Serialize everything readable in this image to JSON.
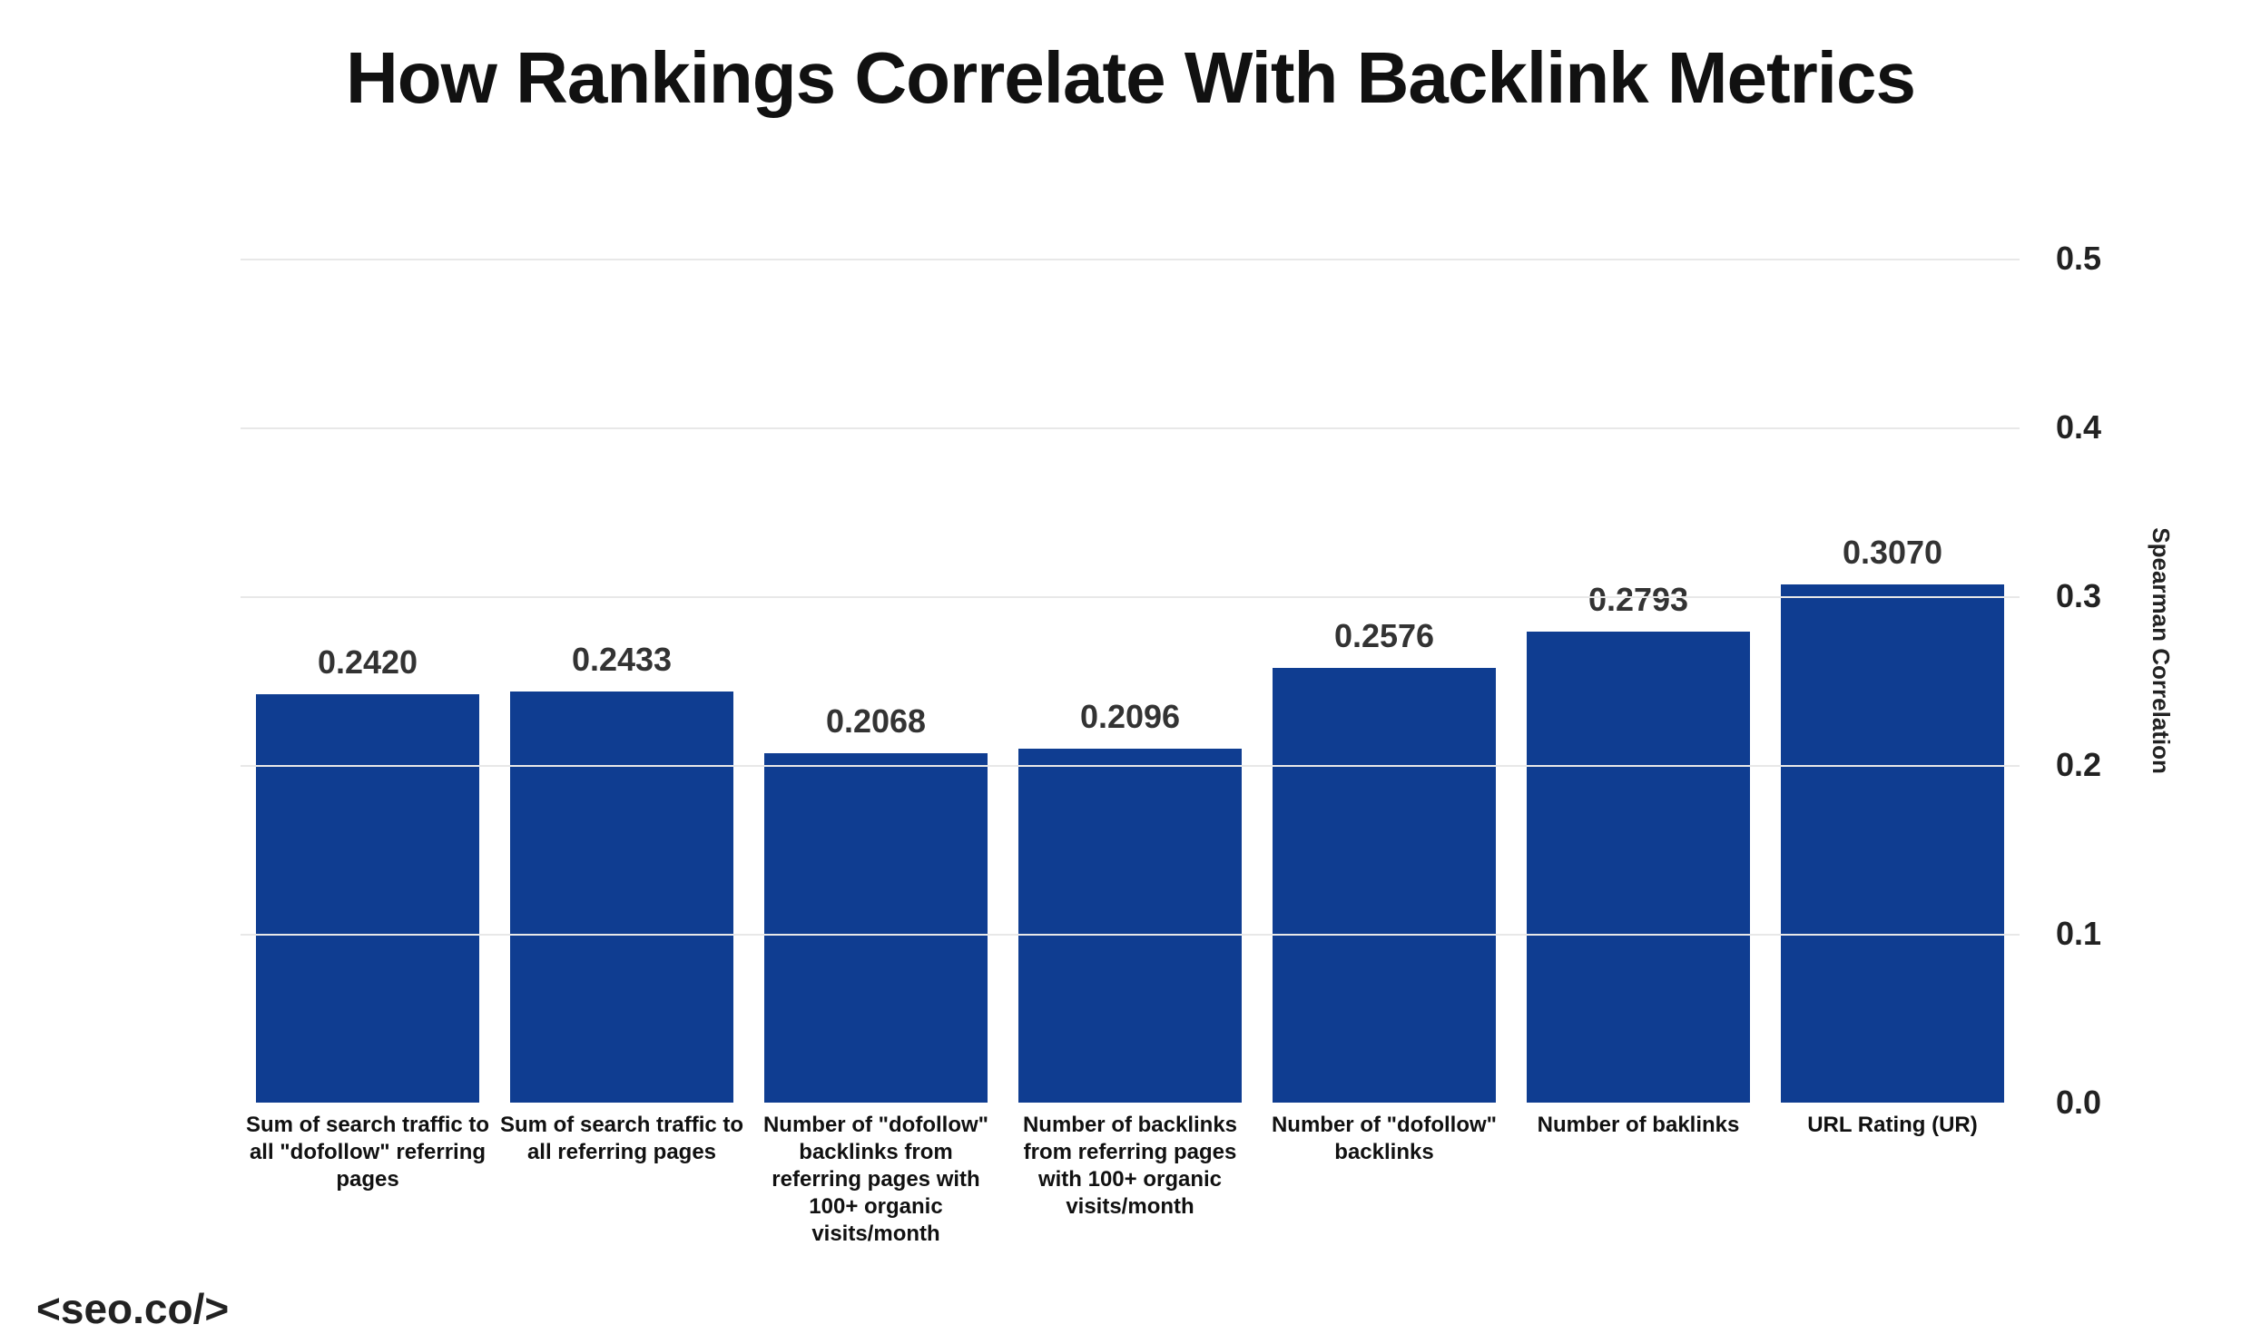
{
  "title": "How Rankings Correlate With Backlink Metrics",
  "footer_brand": "<seo.co/>",
  "chart": {
    "type": "bar",
    "background_color": "#ffffff",
    "grid_color": "#e8e8e8",
    "bar_color": "#0f3d91",
    "title_fontsize": 80,
    "title_color": "#111111",
    "yaxis_title": "Spearman Correlation",
    "yaxis_title_fontsize": 26,
    "xlabel_fontsize": 24,
    "xlabel_color": "#111111",
    "value_label_fontsize": 36,
    "value_label_color": "#333333",
    "ytick_fontsize": 36,
    "ytick_color": "#222222",
    "ylim": [
      0,
      0.5
    ],
    "ytick_step": 0.1,
    "yticks": [
      "0.0",
      "0.1",
      "0.2",
      "0.3",
      "0.4",
      "0.5"
    ],
    "bar_width": 0.88,
    "bars": [
      {
        "label": "Sum of search traffic to all \"dofollow\" referring pages",
        "value": 0.242,
        "display": "0.2420"
      },
      {
        "label": "Sum of search traffic to all referring pages",
        "value": 0.2433,
        "display": "0.2433"
      },
      {
        "label": "Number of \"dofollow\" backlinks from referring pages with 100+ organic visits/month",
        "value": 0.2068,
        "display": "0.2068"
      },
      {
        "label": "Number of backlinks from referring pages with 100+ organic visits/month",
        "value": 0.2096,
        "display": "0.2096"
      },
      {
        "label": "Number of \"dofollow\" backlinks",
        "value": 0.2576,
        "display": "0.2576"
      },
      {
        "label": "Number of baklinks",
        "value": 0.2793,
        "display": "0.2793"
      },
      {
        "label": "URL Rating (UR)",
        "value": 0.307,
        "display": "0.3070"
      }
    ]
  }
}
